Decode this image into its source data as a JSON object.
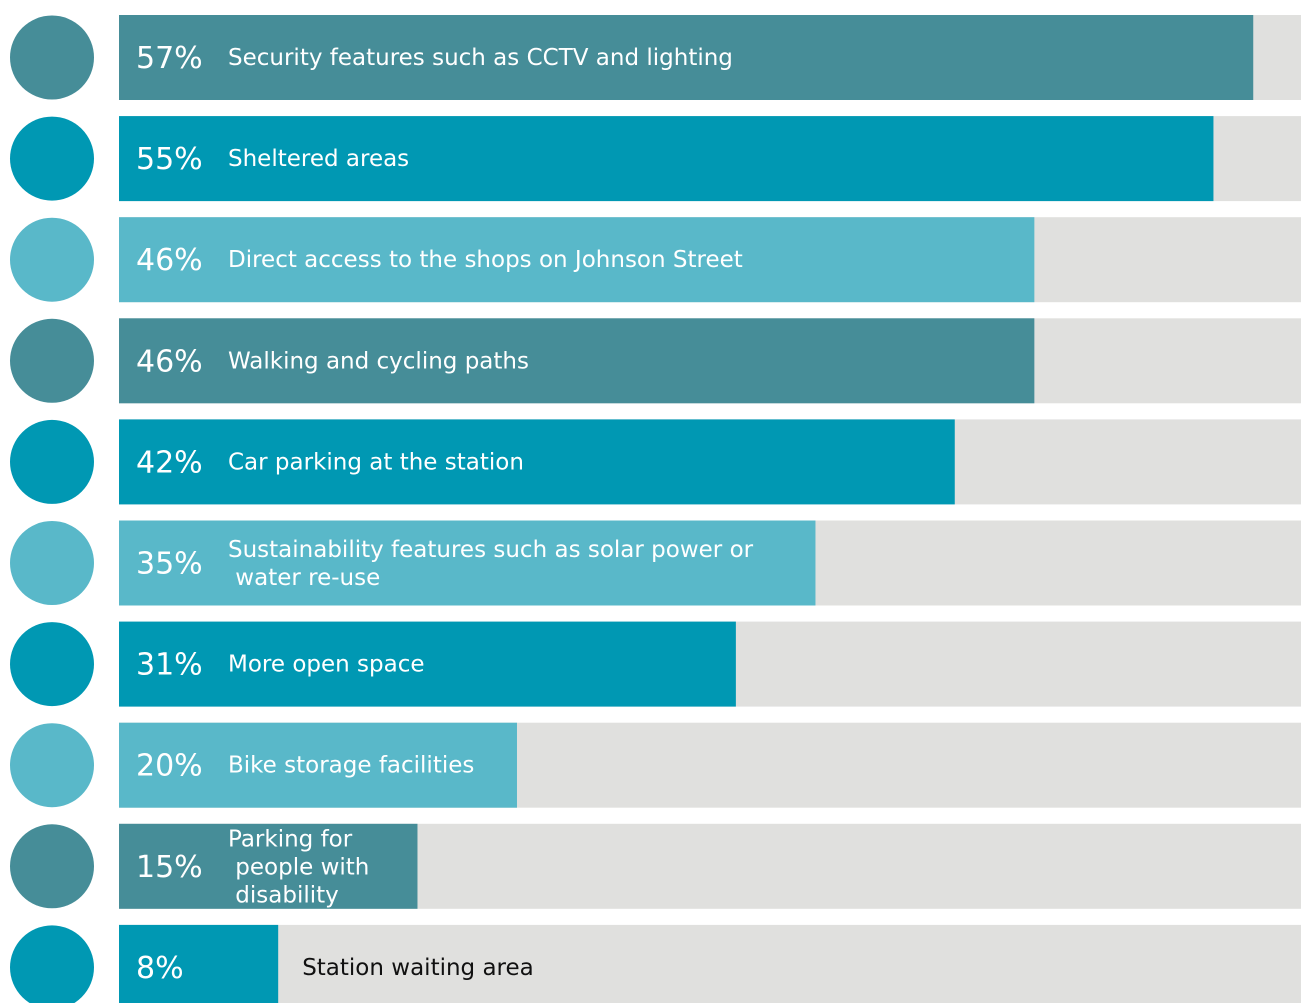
{
  "chart_data": {
    "type": "bar",
    "orientation": "horizontal",
    "categories": [
      "Security features such as CCTV and lighting",
      "Sheltered areas",
      "Direct access to the shops on Johnson Street",
      "Walking and cycling paths",
      "Car parking at the station",
      "Sustainability features such as solar power or water re-use",
      "More open space",
      "Bike storage facilities",
      "Parking for people with disability",
      "Station waiting area"
    ],
    "values": [
      57,
      55,
      46,
      46,
      42,
      35,
      31,
      20,
      15,
      8
    ],
    "value_labels": [
      "57%",
      "55%",
      "46%",
      "46%",
      "42%",
      "35%",
      "31%",
      "20%",
      "15%",
      "8%"
    ],
    "colors": [
      "#468d98",
      "#0098b3",
      "#59b8c9",
      "#468d98",
      "#0098b3",
      "#59b8c9",
      "#0098b3",
      "#59b8c9",
      "#468d98",
      "#0098b3"
    ],
    "background_color": "#e0e0de",
    "xlim": [
      0,
      59.4
    ]
  }
}
